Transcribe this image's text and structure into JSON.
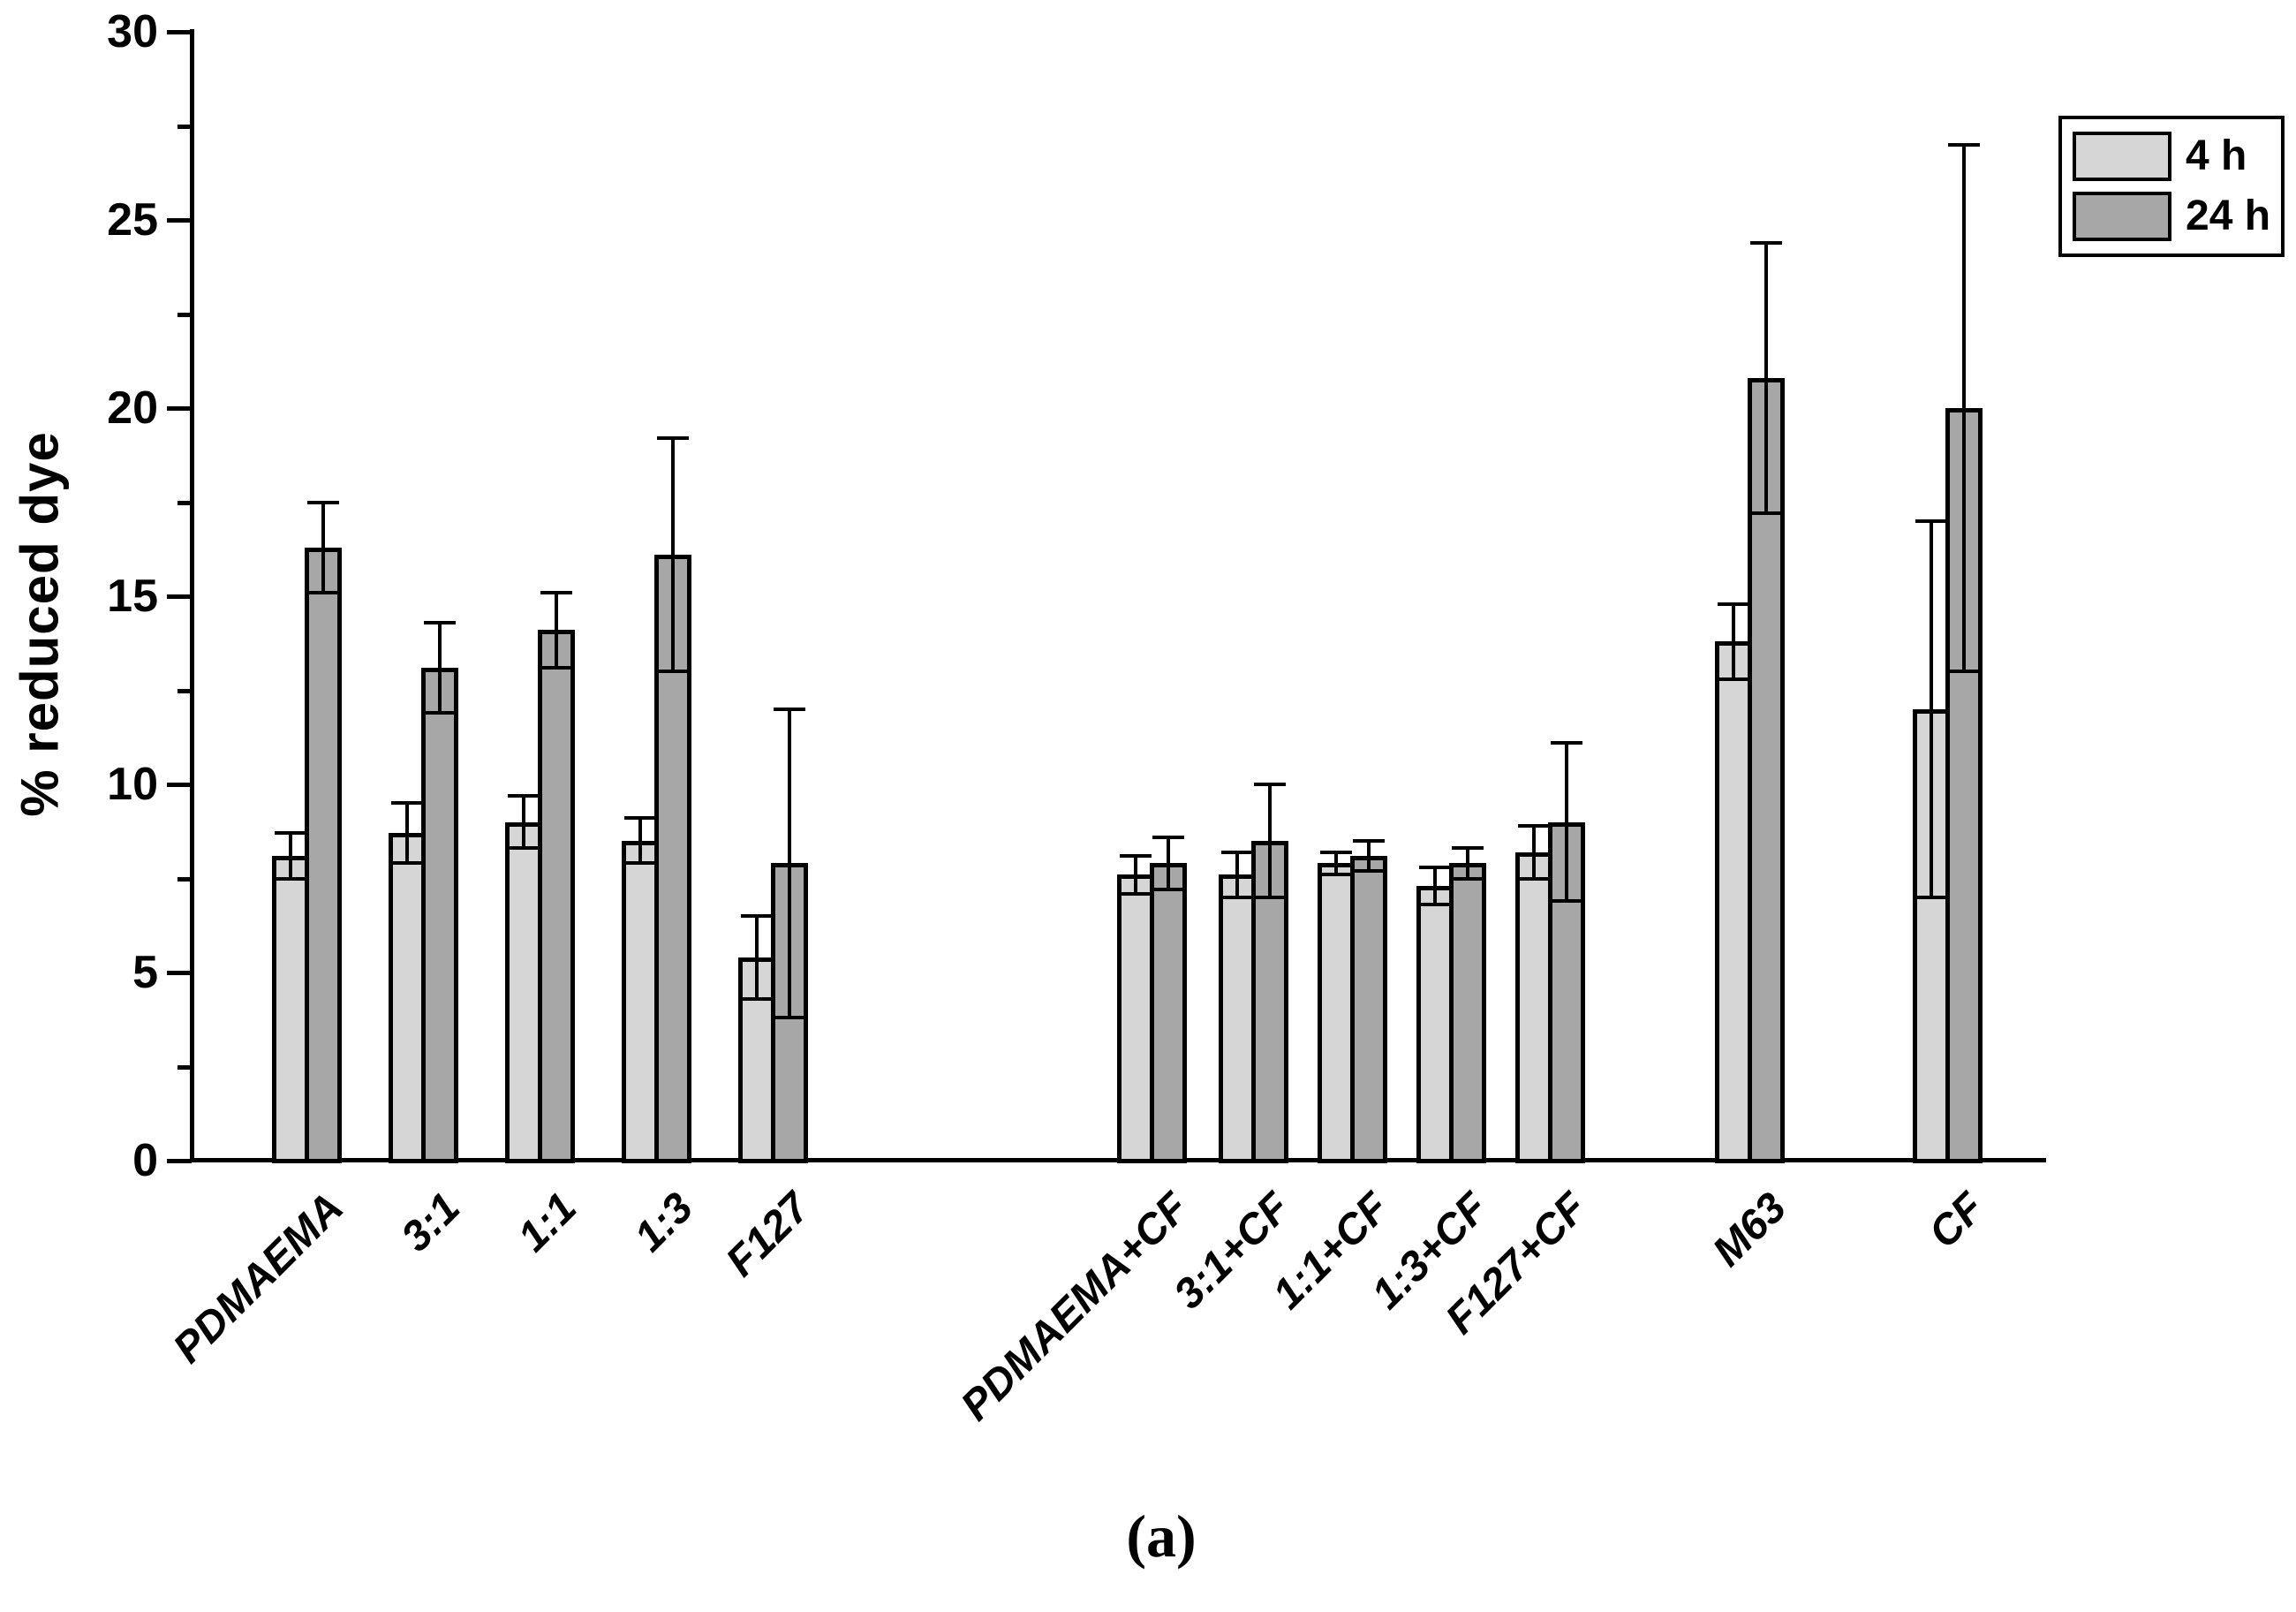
{
  "figure": {
    "caption": "(a)",
    "background": "#ffffff",
    "axis_color": "#000000"
  },
  "chart_data": {
    "type": "bar",
    "title": "",
    "xlabel": "",
    "ylabel": "% reduced dye",
    "ylim": [
      0,
      30
    ],
    "yticks": [
      0,
      5,
      10,
      15,
      20,
      25,
      30
    ],
    "yminor_step": 2.5,
    "grid": false,
    "legend_position": "top-right",
    "error_bars": true,
    "categories": [
      "PDMAEMA",
      "3:1",
      "1:1",
      "1:3",
      "F127",
      "PDMAEMA+CF",
      "3:1+CF",
      "1:1+CF",
      "1:3+CF",
      "F127+CF",
      "M63",
      "CF"
    ],
    "series": [
      {
        "name": "4 h",
        "color": "#d6d6d6",
        "values": [
          8.1,
          8.7,
          9.0,
          8.5,
          5.4,
          7.6,
          7.6,
          7.9,
          7.3,
          8.2,
          13.8,
          12.0
        ],
        "errors": [
          0.6,
          0.8,
          0.7,
          0.6,
          1.1,
          0.5,
          0.6,
          0.3,
          0.5,
          0.7,
          1.0,
          5.0
        ]
      },
      {
        "name": "24 h",
        "color": "#a7a7a7",
        "values": [
          16.3,
          13.1,
          14.1,
          16.1,
          7.9,
          7.9,
          8.5,
          8.1,
          7.9,
          9.0,
          20.8,
          20.0
        ],
        "errors": [
          1.2,
          1.2,
          1.0,
          3.1,
          4.1,
          0.7,
          1.5,
          0.4,
          0.4,
          2.1,
          3.6,
          7.0
        ]
      }
    ]
  }
}
